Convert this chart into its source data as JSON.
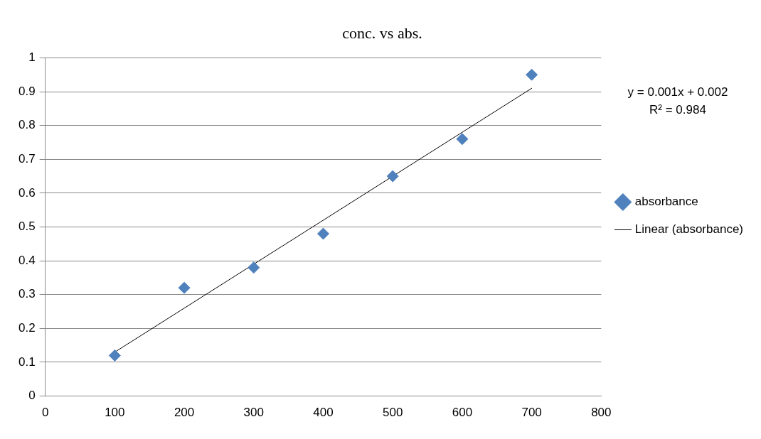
{
  "chart_data": {
    "type": "scatter",
    "title": "conc. vs abs.",
    "x": [
      100,
      200,
      300,
      400,
      500,
      600,
      700
    ],
    "series": [
      {
        "name": "absorbance",
        "color": "#4f81bd",
        "marker": "diamond",
        "values": [
          0.12,
          0.32,
          0.38,
          0.48,
          0.65,
          0.76,
          0.95
        ]
      },
      {
        "name": "Linear (absorbance)",
        "type": "line",
        "color": "#000000",
        "marker": "none",
        "line_style": "solid",
        "x": [
          100,
          700
        ],
        "values": [
          0.13,
          0.91
        ]
      }
    ],
    "xlim": [
      0,
      800
    ],
    "xticks": [
      0,
      100,
      200,
      300,
      400,
      500,
      600,
      700,
      800
    ],
    "ylim": [
      0,
      1
    ],
    "yticks": [
      0,
      0.1,
      0.2,
      0.3,
      0.4,
      0.5,
      0.6,
      0.7,
      0.8,
      0.9,
      1
    ],
    "grid": "y",
    "legend": "right",
    "annotations": [
      "y = 0.001x + 0.002",
      "R² = 0.984"
    ]
  }
}
